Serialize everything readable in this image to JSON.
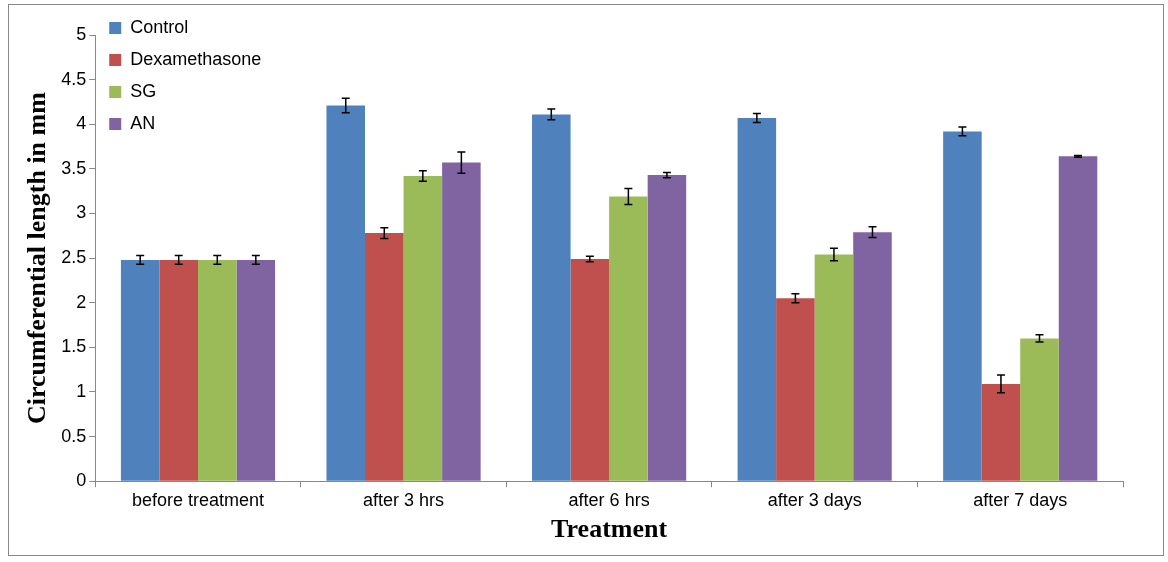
{
  "chart_data": {
    "type": "bar",
    "xlabel": "Treatment",
    "ylabel": "Circumferential length in mm",
    "categories": [
      "before treatment",
      "after 3 hrs",
      "after 6 hrs",
      "after 3 days",
      "after 7 days"
    ],
    "series": [
      {
        "name": "Control",
        "color": "#4f81bd",
        "values": [
          2.48,
          4.21,
          4.11,
          4.07,
          3.92
        ],
        "errors": [
          0.05,
          0.08,
          0.06,
          0.05,
          0.05
        ]
      },
      {
        "name": "Dexamethasone",
        "color": "#c0504d",
        "values": [
          2.48,
          2.78,
          2.49,
          2.05,
          1.09
        ],
        "errors": [
          0.05,
          0.06,
          0.03,
          0.05,
          0.1
        ]
      },
      {
        "name": "SG",
        "color": "#9bbb59",
        "values": [
          2.48,
          3.42,
          3.19,
          2.54,
          1.6
        ],
        "errors": [
          0.05,
          0.06,
          0.09,
          0.07,
          0.04
        ]
      },
      {
        "name": "AN",
        "color": "#8064a2",
        "values": [
          2.48,
          3.57,
          3.43,
          2.79,
          3.64
        ],
        "errors": [
          0.05,
          0.12,
          0.03,
          0.06,
          0.01
        ]
      }
    ],
    "ylim": [
      0,
      5
    ],
    "yticks": [
      0,
      0.5,
      1,
      1.5,
      2,
      2.5,
      3,
      3.5,
      4,
      4.5,
      5
    ],
    "grid": false,
    "legend": "top left"
  }
}
